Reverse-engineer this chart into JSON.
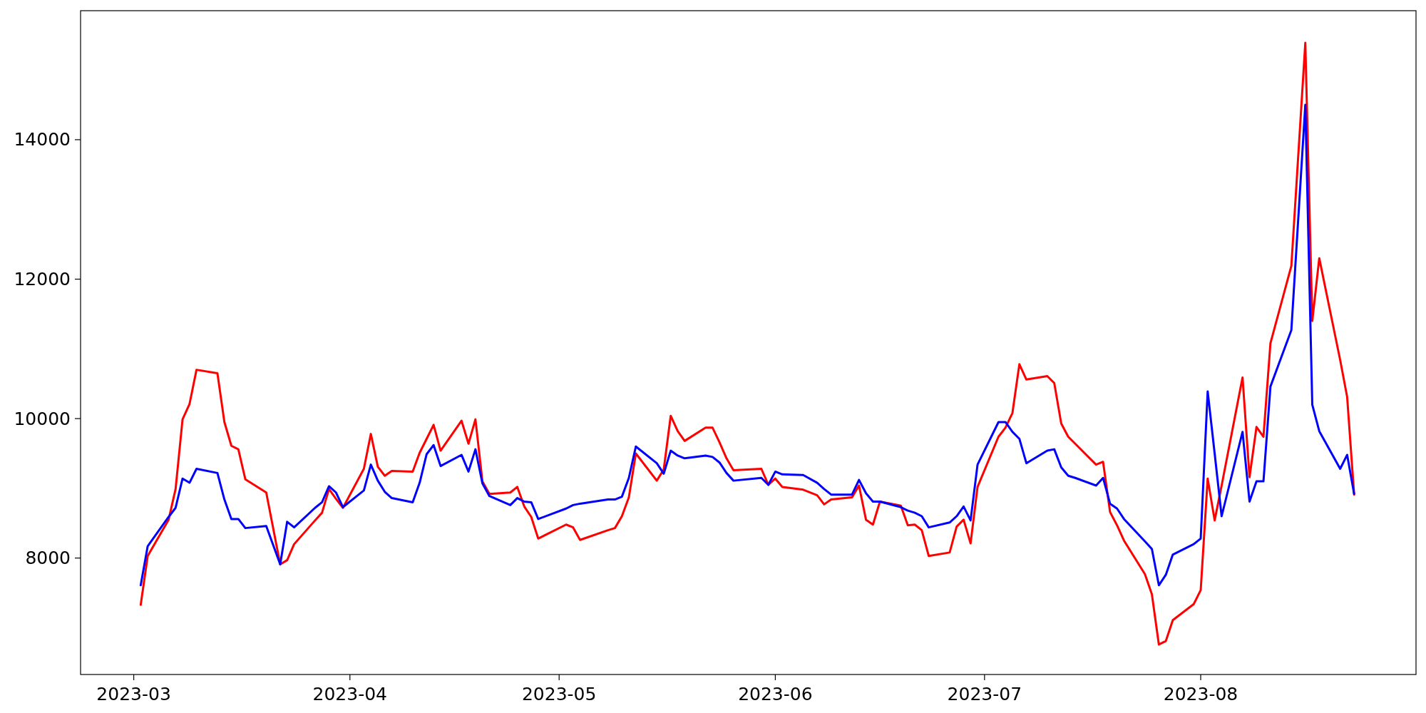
{
  "chart_data": {
    "type": "line",
    "x": [
      "2023-03-02",
      "2023-03-03",
      "2023-03-06",
      "2023-03-07",
      "2023-03-08",
      "2023-03-09",
      "2023-03-10",
      "2023-03-13",
      "2023-03-14",
      "2023-03-15",
      "2023-03-16",
      "2023-03-17",
      "2023-03-20",
      "2023-03-22",
      "2023-03-23",
      "2023-03-24",
      "2023-03-27",
      "2023-03-28",
      "2023-03-29",
      "2023-03-30",
      "2023-03-31",
      "2023-04-03",
      "2023-04-04",
      "2023-04-05",
      "2023-04-06",
      "2023-04-07",
      "2023-04-10",
      "2023-04-11",
      "2023-04-12",
      "2023-04-13",
      "2023-04-14",
      "2023-04-17",
      "2023-04-18",
      "2023-04-19",
      "2023-04-20",
      "2023-04-21",
      "2023-04-24",
      "2023-04-25",
      "2023-04-26",
      "2023-04-27",
      "2023-04-28",
      "2023-05-02",
      "2023-05-03",
      "2023-05-04",
      "2023-05-08",
      "2023-05-09",
      "2023-05-10",
      "2023-05-11",
      "2023-05-12",
      "2023-05-15",
      "2023-05-16",
      "2023-05-17",
      "2023-05-18",
      "2023-05-19",
      "2023-05-22",
      "2023-05-23",
      "2023-05-24",
      "2023-05-25",
      "2023-05-26",
      "2023-05-30",
      "2023-05-31",
      "2023-06-01",
      "2023-06-02",
      "2023-06-05",
      "2023-06-07",
      "2023-06-08",
      "2023-06-09",
      "2023-06-12",
      "2023-06-13",
      "2023-06-14",
      "2023-06-15",
      "2023-06-16",
      "2023-06-19",
      "2023-06-20",
      "2023-06-21",
      "2023-06-22",
      "2023-06-23",
      "2023-06-26",
      "2023-06-27",
      "2023-06-28",
      "2023-06-29",
      "2023-06-30",
      "2023-07-03",
      "2023-07-04",
      "2023-07-05",
      "2023-07-06",
      "2023-07-07",
      "2023-07-10",
      "2023-07-11",
      "2023-07-12",
      "2023-07-13",
      "2023-07-14",
      "2023-07-17",
      "2023-07-18",
      "2023-07-19",
      "2023-07-20",
      "2023-07-21",
      "2023-07-24",
      "2023-07-25",
      "2023-07-26",
      "2023-07-27",
      "2023-07-28",
      "2023-07-31",
      "2023-08-01",
      "2023-08-02",
      "2023-08-03",
      "2023-08-04",
      "2023-08-07",
      "2023-08-08",
      "2023-08-09",
      "2023-08-10",
      "2023-08-11",
      "2023-08-14",
      "2023-08-16",
      "2023-08-17",
      "2023-08-18",
      "2023-08-21",
      "2023-08-22",
      "2023-08-23"
    ],
    "series": [
      {
        "color": "#ff0000",
        "values": [
          7330,
          8030,
          8550,
          8990,
          9990,
          10210,
          10700,
          10650,
          9950,
          9610,
          9560,
          9130,
          8940,
          7910,
          7970,
          8200,
          8540,
          8650,
          8990,
          8850,
          8720,
          9280,
          9780,
          9310,
          9180,
          9250,
          9240,
          9510,
          9710,
          9910,
          9540,
          9970,
          9640,
          9990,
          9100,
          8920,
          8940,
          9020,
          8740,
          8590,
          8280,
          8480,
          8440,
          8260,
          8400,
          8430,
          8600,
          8870,
          9500,
          9110,
          9270,
          10040,
          9820,
          9680,
          9870,
          9870,
          9660,
          9430,
          9260,
          9280,
          9050,
          9140,
          9020,
          8980,
          8900,
          8770,
          8840,
          8870,
          9040,
          8550,
          8480,
          8810,
          8750,
          8470,
          8480,
          8400,
          8030,
          8080,
          8450,
          8550,
          8210,
          9020,
          9740,
          9870,
          10080,
          10780,
          10560,
          10610,
          10510,
          9930,
          9740,
          9640,
          9340,
          9380,
          8660,
          8470,
          8250,
          7770,
          7480,
          6760,
          6810,
          7110,
          7340,
          7540,
          9140,
          8540,
          9040,
          10590,
          9160,
          9880,
          9740,
          11080,
          12190,
          15390,
          11400,
          12300,
          10840,
          10310,
          8910
        ]
      },
      {
        "color": "#0000ff",
        "values": [
          7610,
          8170,
          8590,
          8720,
          9140,
          9080,
          9280,
          9220,
          8840,
          8560,
          8560,
          8430,
          8460,
          7910,
          8520,
          8440,
          8720,
          8800,
          9030,
          8940,
          8730,
          8970,
          9340,
          9110,
          8950,
          8860,
          8800,
          9080,
          9490,
          9620,
          9320,
          9480,
          9240,
          9560,
          9070,
          8890,
          8760,
          8860,
          8810,
          8800,
          8560,
          8710,
          8760,
          8780,
          8840,
          8840,
          8880,
          9150,
          9600,
          9360,
          9210,
          9540,
          9470,
          9430,
          9470,
          9450,
          9370,
          9220,
          9110,
          9150,
          9050,
          9240,
          9200,
          9190,
          9080,
          8990,
          8910,
          8910,
          9120,
          8930,
          8810,
          8810,
          8730,
          8680,
          8650,
          8600,
          8440,
          8510,
          8600,
          8740,
          8540,
          9340,
          9950,
          9950,
          9810,
          9710,
          9360,
          9540,
          9560,
          9300,
          9180,
          9150,
          9040,
          9150,
          8780,
          8710,
          8560,
          8240,
          8130,
          7610,
          7760,
          8050,
          8200,
          8280,
          10390,
          9500,
          8600,
          9810,
          8810,
          9100,
          9100,
          10460,
          11270,
          14500,
          10200,
          9820,
          9280,
          9480,
          8920
        ]
      }
    ],
    "xlim": [
      "2023-02-21T09:00",
      "2023-08-31T21:00"
    ],
    "xticks": [
      {
        "value": "2023-03-01",
        "label": "2023-03"
      },
      {
        "value": "2023-04-01",
        "label": "2023-04"
      },
      {
        "value": "2023-05-01",
        "label": "2023-05"
      },
      {
        "value": "2023-06-01",
        "label": "2023-06"
      },
      {
        "value": "2023-07-01",
        "label": "2023-07"
      },
      {
        "value": "2023-08-01",
        "label": "2023-08"
      }
    ],
    "ylim": [
      6330,
      15850
    ],
    "yticks": [
      8000,
      10000,
      12000,
      14000
    ],
    "grid": false,
    "marker": "none",
    "line_style": "solid"
  }
}
